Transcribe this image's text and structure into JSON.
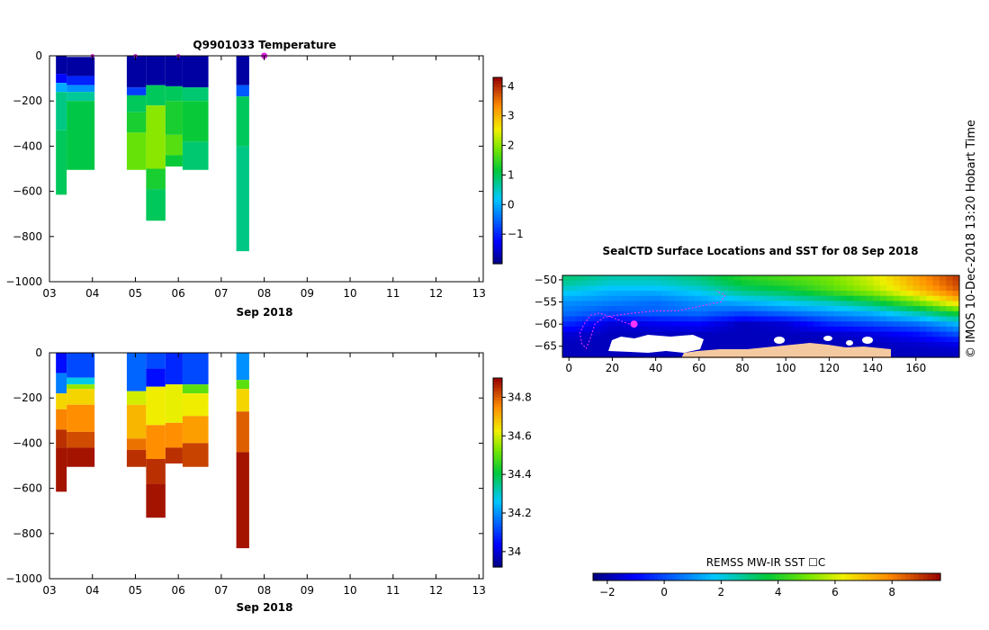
{
  "credit": "© IMOS 10-Dec-2018 13:20 Hobart Time",
  "chart_data": [
    {
      "type": "heatmap",
      "title": "Q9901033  Temperature",
      "xlabel": "Sep 2018",
      "ylabel": "",
      "x_ticks": [
        "03",
        "04",
        "05",
        "06",
        "07",
        "08",
        "09",
        "10",
        "11",
        "12",
        "13"
      ],
      "xlim": [
        3,
        13.1
      ],
      "y_ticks": [
        0,
        -200,
        -400,
        -600,
        -800,
        -1000
      ],
      "ylim": [
        -1000,
        0
      ],
      "colorbar_ticks": [
        -1,
        0,
        1,
        2,
        3,
        4
      ],
      "colorbar_range": [
        -2,
        4.3
      ],
      "surface_marks_x": [
        4.0,
        5.0,
        6.0,
        8.0
      ],
      "profiles": [
        {
          "x0": 3.15,
          "x1": 3.4,
          "layers": [
            {
              "top": 0,
              "bottom": -80,
              "value": -1.8
            },
            {
              "top": -80,
              "bottom": -120,
              "value": -1.2
            },
            {
              "top": -120,
              "bottom": -160,
              "value": 0.0
            },
            {
              "top": -160,
              "bottom": -330,
              "value": 0.8
            },
            {
              "top": -330,
              "bottom": -615,
              "value": 1.0
            }
          ]
        },
        {
          "x0": 3.4,
          "x1": 4.05,
          "layers": [
            {
              "top": -5,
              "bottom": -90,
              "value": -1.8
            },
            {
              "top": -90,
              "bottom": -130,
              "value": -1.0
            },
            {
              "top": -130,
              "bottom": -160,
              "value": -0.2
            },
            {
              "top": -160,
              "bottom": -200,
              "value": 0.7
            },
            {
              "top": -200,
              "bottom": -505,
              "value": 1.1
            }
          ]
        },
        {
          "x0": 4.8,
          "x1": 5.25,
          "layers": [
            {
              "top": 0,
              "bottom": -140,
              "value": -1.8
            },
            {
              "top": -140,
              "bottom": -175,
              "value": -0.8
            },
            {
              "top": -175,
              "bottom": -250,
              "value": 1.0
            },
            {
              "top": -250,
              "bottom": -340,
              "value": 1.3
            },
            {
              "top": -340,
              "bottom": -505,
              "value": 1.8
            }
          ]
        },
        {
          "x0": 5.25,
          "x1": 5.7,
          "layers": [
            {
              "top": 0,
              "bottom": -130,
              "value": -1.8
            },
            {
              "top": -130,
              "bottom": -220,
              "value": 1.0
            },
            {
              "top": -220,
              "bottom": -500,
              "value": 2.0
            },
            {
              "top": -500,
              "bottom": -590,
              "value": 1.3
            },
            {
              "top": -590,
              "bottom": -730,
              "value": 1.0
            }
          ]
        },
        {
          "x0": 5.7,
          "x1": 6.1,
          "layers": [
            {
              "top": 0,
              "bottom": -135,
              "value": -1.8
            },
            {
              "top": -135,
              "bottom": -200,
              "value": 1.0
            },
            {
              "top": -200,
              "bottom": -350,
              "value": 1.3
            },
            {
              "top": -350,
              "bottom": -440,
              "value": 1.7
            },
            {
              "top": -440,
              "bottom": -490,
              "value": 1.2
            }
          ]
        },
        {
          "x0": 6.1,
          "x1": 6.7,
          "layers": [
            {
              "top": 0,
              "bottom": -140,
              "value": -1.8
            },
            {
              "top": -140,
              "bottom": -200,
              "value": 0.9
            },
            {
              "top": -200,
              "bottom": -380,
              "value": 1.2
            },
            {
              "top": -380,
              "bottom": -505,
              "value": 0.9
            }
          ]
        },
        {
          "x0": 7.35,
          "x1": 7.65,
          "layers": [
            {
              "top": 0,
              "bottom": -130,
              "value": -1.8
            },
            {
              "top": -130,
              "bottom": -180,
              "value": -0.6
            },
            {
              "top": -180,
              "bottom": -400,
              "value": 1.0
            },
            {
              "top": -400,
              "bottom": -865,
              "value": 0.8
            }
          ]
        }
      ]
    },
    {
      "type": "heatmap",
      "title": "",
      "xlabel": "Sep 2018",
      "ylabel": "",
      "x_ticks": [
        "03",
        "04",
        "05",
        "06",
        "07",
        "08",
        "09",
        "10",
        "11",
        "12",
        "13"
      ],
      "xlim": [
        3,
        13.1
      ],
      "y_ticks": [
        0,
        -200,
        -400,
        -600,
        -800,
        -1000
      ],
      "ylim": [
        -1000,
        0
      ],
      "colorbar_ticks": [
        34,
        34.2,
        34.4,
        34.6,
        34.8
      ],
      "colorbar_range": [
        33.92,
        34.9
      ],
      "profiles": [
        {
          "x0": 3.15,
          "x1": 3.4,
          "layers": [
            {
              "top": 0,
              "bottom": -90,
              "value": 34.05
            },
            {
              "top": -90,
              "bottom": -180,
              "value": 34.18
            },
            {
              "top": -180,
              "bottom": -250,
              "value": 34.66
            },
            {
              "top": -250,
              "bottom": -340,
              "value": 34.76
            },
            {
              "top": -340,
              "bottom": -420,
              "value": 34.85
            },
            {
              "top": -420,
              "bottom": -615,
              "value": 34.88
            }
          ]
        },
        {
          "x0": 3.4,
          "x1": 4.05,
          "layers": [
            {
              "top": 0,
              "bottom": -110,
              "value": 34.12
            },
            {
              "top": -110,
              "bottom": -140,
              "value": 34.28
            },
            {
              "top": -140,
              "bottom": -160,
              "value": 34.55
            },
            {
              "top": -160,
              "bottom": -230,
              "value": 34.66
            },
            {
              "top": -230,
              "bottom": -350,
              "value": 34.75
            },
            {
              "top": -350,
              "bottom": -420,
              "value": 34.82
            },
            {
              "top": -420,
              "bottom": -505,
              "value": 34.88
            }
          ]
        },
        {
          "x0": 4.8,
          "x1": 5.25,
          "layers": [
            {
              "top": 0,
              "bottom": -170,
              "value": 34.15
            },
            {
              "top": -170,
              "bottom": -230,
              "value": 34.6
            },
            {
              "top": -230,
              "bottom": -380,
              "value": 34.7
            },
            {
              "top": -380,
              "bottom": -430,
              "value": 34.78
            },
            {
              "top": -430,
              "bottom": -505,
              "value": 34.85
            }
          ]
        },
        {
          "x0": 5.25,
          "x1": 5.7,
          "layers": [
            {
              "top": 0,
              "bottom": -70,
              "value": 34.12
            },
            {
              "top": -70,
              "bottom": -150,
              "value": 34.05
            },
            {
              "top": -150,
              "bottom": -320,
              "value": 34.63
            },
            {
              "top": -320,
              "bottom": -470,
              "value": 34.75
            },
            {
              "top": -470,
              "bottom": -580,
              "value": 34.85
            },
            {
              "top": -580,
              "bottom": -730,
              "value": 34.88
            }
          ]
        },
        {
          "x0": 5.7,
          "x1": 6.1,
          "layers": [
            {
              "top": 0,
              "bottom": -140,
              "value": 34.08
            },
            {
              "top": -140,
              "bottom": -310,
              "value": 34.62
            },
            {
              "top": -310,
              "bottom": -420,
              "value": 34.75
            },
            {
              "top": -420,
              "bottom": -490,
              "value": 34.85
            }
          ]
        },
        {
          "x0": 6.1,
          "x1": 6.7,
          "layers": [
            {
              "top": 0,
              "bottom": -140,
              "value": 34.12
            },
            {
              "top": -140,
              "bottom": -180,
              "value": 34.5
            },
            {
              "top": -180,
              "bottom": -280,
              "value": 34.63
            },
            {
              "top": -280,
              "bottom": -400,
              "value": 34.73
            },
            {
              "top": -400,
              "bottom": -505,
              "value": 34.83
            }
          ]
        },
        {
          "x0": 7.35,
          "x1": 7.65,
          "layers": [
            {
              "top": 0,
              "bottom": -120,
              "value": 34.2
            },
            {
              "top": -120,
              "bottom": -160,
              "value": 34.5
            },
            {
              "top": -160,
              "bottom": -260,
              "value": 34.66
            },
            {
              "top": -260,
              "bottom": -440,
              "value": 34.8
            },
            {
              "top": -440,
              "bottom": -865,
              "value": 34.88
            }
          ]
        }
      ]
    },
    {
      "type": "heatmap",
      "title": "SealCTD Surface Locations and SST for 08 Sep 2018",
      "xlabel": "",
      "ylabel": "",
      "x_ticks": [
        0,
        20,
        40,
        60,
        80,
        100,
        120,
        140,
        160
      ],
      "xlim": [
        -3,
        180
      ],
      "y_ticks": [
        -50,
        -55,
        -60,
        -65
      ],
      "ylim": [
        -67.5,
        -49
      ],
      "colorbar_label": "REMSS MW-IR SST ☐C",
      "colorbar_ticks": [
        -2,
        0,
        2,
        4,
        6,
        8
      ],
      "colorbar_range": [
        -2.5,
        9.7
      ],
      "sst_field_lon": [
        0,
        20,
        40,
        60,
        80,
        100,
        120,
        140,
        160,
        180
      ],
      "sst_field_lat": [
        -67.5,
        -65,
        -62.5,
        -60,
        -57.5,
        -55,
        -52.5,
        -50,
        -49
      ],
      "sst_field": [
        [
          -1.8,
          -1.8,
          -1.8,
          -1.8,
          -1.8,
          -1.8,
          -1.8,
          -1.8,
          -1.8,
          -1.8
        ],
        [
          -1.8,
          -1.8,
          -1.8,
          -1.8,
          -1.8,
          -1.8,
          -1.8,
          -1.8,
          -1.7,
          -1.5
        ],
        [
          -1.6,
          -1.8,
          -1.8,
          -1.8,
          -1.8,
          -1.8,
          -1.8,
          -1.5,
          -1.0,
          0.0
        ],
        [
          -0.5,
          -1.5,
          -1.2,
          -1.0,
          -1.8,
          -1.5,
          -0.5,
          0.0,
          0.5,
          1.5
        ],
        [
          0.5,
          0.0,
          0.3,
          0.5,
          0.0,
          0.5,
          1.0,
          1.5,
          2.5,
          4.0
        ],
        [
          1.0,
          0.8,
          0.5,
          1.0,
          1.5,
          2.0,
          2.5,
          3.5,
          5.0,
          7.0
        ],
        [
          2.0,
          1.5,
          1.5,
          2.0,
          3.0,
          3.5,
          4.5,
          5.5,
          7.0,
          8.5
        ],
        [
          3.0,
          2.5,
          2.5,
          3.0,
          4.0,
          4.5,
          5.0,
          6.0,
          7.5,
          9.0
        ],
        [
          3.0,
          2.5,
          2.5,
          3.0,
          4.0,
          4.5,
          5.0,
          6.0,
          7.5,
          9.0
        ]
      ],
      "track_lon_lat": [
        [
          28,
          -60
        ],
        [
          25,
          -59.5
        ],
        [
          20,
          -58.5
        ],
        [
          14,
          -57.5
        ],
        [
          10,
          -58
        ],
        [
          7,
          -60
        ],
        [
          5,
          -62
        ],
        [
          6,
          -64.5
        ],
        [
          8,
          -65.5
        ],
        [
          10,
          -63
        ],
        [
          12,
          -60
        ],
        [
          16,
          -58.5
        ],
        [
          22,
          -58
        ],
        [
          30,
          -57.5
        ],
        [
          40,
          -57
        ],
        [
          50,
          -57
        ],
        [
          60,
          -56
        ],
        [
          70,
          -55
        ],
        [
          72,
          -53.5
        ],
        [
          68,
          -52.5
        ]
      ],
      "current_position": [
        30,
        -60
      ]
    }
  ]
}
